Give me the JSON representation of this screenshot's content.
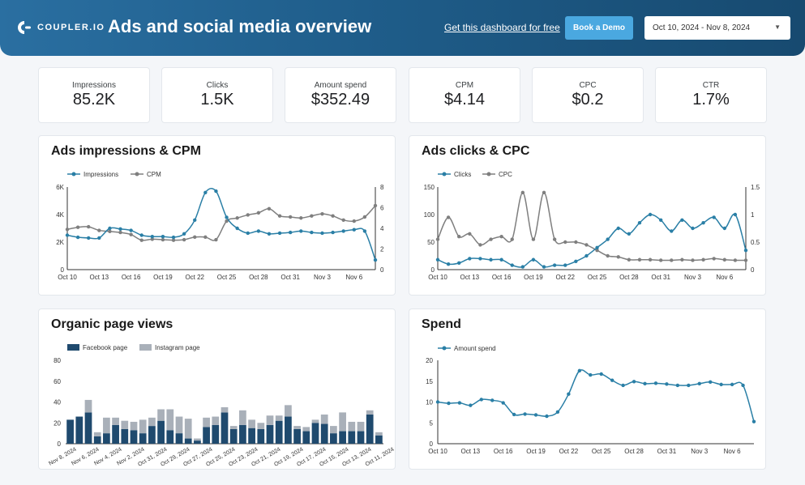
{
  "header": {
    "logo_text": "COUPLER.IO",
    "title": "Ads and social media overview",
    "free_link": "Get this dashboard for free",
    "demo_button": "Book a Demo",
    "date_range": "Oct 10, 2024 - Nov 8, 2024"
  },
  "kpis": [
    {
      "label": "Impressions",
      "value": "85.2K"
    },
    {
      "label": "Clicks",
      "value": "1.5K"
    },
    {
      "label": "Amount spend",
      "value": "$352.49"
    },
    {
      "label": "CPM",
      "value": "$4.14"
    },
    {
      "label": "CPC",
      "value": "$0.2"
    },
    {
      "label": "CTR",
      "value": "1.7%"
    }
  ],
  "colors": {
    "teal": "#2a7fa6",
    "gray": "#7f7f7f",
    "navy": "#1f4a6e",
    "lightgray": "#a9b0b9"
  },
  "chart_data": [
    {
      "type": "line",
      "title": "Ads impressions & CPM",
      "x_ticks": [
        "Oct 10",
        "Oct 13",
        "Oct 16",
        "Oct 19",
        "Oct 22",
        "Oct 25",
        "Oct 28",
        "Oct 31",
        "Nov 3",
        "Nov 6"
      ],
      "y_ticks_left": [
        "0",
        "2K",
        "4K",
        "6K"
      ],
      "y_ticks_right": [
        "0",
        "2",
        "4",
        "6",
        "8"
      ],
      "ylim_left": [
        0,
        6000
      ],
      "ylim_right": [
        0,
        8
      ],
      "series": [
        {
          "name": "Impressions",
          "axis": "left",
          "values": [
            2500,
            2350,
            2300,
            2300,
            3000,
            2950,
            2850,
            2500,
            2400,
            2400,
            2350,
            2600,
            3600,
            5600,
            5700,
            3800,
            3000,
            2650,
            2800,
            2600,
            2650,
            2700,
            2800,
            2700,
            2650,
            2700,
            2800,
            2900,
            2800,
            700
          ]
        },
        {
          "name": "CPM",
          "axis": "right",
          "values": [
            3.9,
            4.1,
            4.15,
            3.8,
            3.7,
            3.6,
            3.4,
            2.85,
            2.95,
            2.9,
            2.85,
            2.9,
            3.15,
            3.15,
            2.9,
            4.7,
            5.0,
            5.3,
            5.5,
            5.9,
            5.2,
            5.1,
            5.0,
            5.2,
            5.4,
            5.2,
            4.8,
            4.7,
            5.1,
            6.2
          ]
        }
      ]
    },
    {
      "type": "line",
      "title": "Ads clicks & CPC",
      "x_ticks": [
        "Oct 10",
        "Oct 13",
        "Oct 16",
        "Oct 19",
        "Oct 22",
        "Oct 25",
        "Oct 28",
        "Oct 31",
        "Nov 3",
        "Nov 6"
      ],
      "y_ticks_left": [
        "0",
        "50",
        "100",
        "150"
      ],
      "y_ticks_right": [
        "0",
        "0.5",
        "1",
        "1.5"
      ],
      "ylim_left": [
        0,
        150
      ],
      "ylim_right": [
        0,
        1.5
      ],
      "series": [
        {
          "name": "Clicks",
          "axis": "left",
          "values": [
            18,
            10,
            12,
            20,
            20,
            18,
            18,
            8,
            5,
            18,
            5,
            8,
            8,
            15,
            25,
            40,
            55,
            75,
            65,
            85,
            100,
            90,
            70,
            90,
            75,
            85,
            95,
            75,
            100,
            35
          ]
        },
        {
          "name": "CPC",
          "axis": "right",
          "values": [
            0.55,
            0.95,
            0.6,
            0.65,
            0.45,
            0.55,
            0.6,
            0.55,
            1.4,
            0.55,
            1.4,
            0.55,
            0.5,
            0.5,
            0.45,
            0.35,
            0.25,
            0.23,
            0.18,
            0.18,
            0.18,
            0.17,
            0.17,
            0.18,
            0.17,
            0.18,
            0.2,
            0.18,
            0.17,
            0.17
          ]
        }
      ]
    },
    {
      "type": "bar",
      "stacked": true,
      "title": "Organic page views",
      "x_tick_labels": [
        "Nov 8, 2024",
        "Nov 6, 2024",
        "Nov 4, 2024",
        "Nov 2, 2024",
        "Oct 31, 2024",
        "Oct 29, 2024",
        "Oct 27, 2024",
        "Oct 25, 2024",
        "Oct 23, 2024",
        "Oct 21, 2024",
        "Oct 19, 2024",
        "Oct 17, 2024",
        "Oct 15, 2024",
        "Oct 13, 2024",
        "Oct 11, 2024"
      ],
      "y_ticks": [
        "0",
        "20",
        "40",
        "60",
        "80"
      ],
      "ylim": [
        0,
        80
      ],
      "series": [
        {
          "name": "Facebook page",
          "values": [
            23,
            26,
            30,
            7,
            10,
            18,
            14,
            13,
            10,
            17,
            22,
            13,
            10,
            5,
            3,
            16,
            18,
            30,
            14,
            18,
            15,
            14,
            18,
            22,
            26,
            14,
            12,
            20,
            19,
            10,
            12,
            12,
            12,
            28,
            8
          ]
        },
        {
          "name": "Instagram page",
          "values": [
            0,
            0,
            12,
            4,
            15,
            7,
            8,
            8,
            13,
            8,
            11,
            20,
            16,
            19,
            2,
            9,
            8,
            5,
            3,
            14,
            8,
            6,
            9,
            5,
            11,
            3,
            4,
            3,
            9,
            7,
            18,
            9,
            9,
            4,
            3
          ]
        }
      ]
    },
    {
      "type": "line",
      "title": "Spend",
      "x_ticks": [
        "Oct 10",
        "Oct 13",
        "Oct 16",
        "Oct 19",
        "Oct 22",
        "Oct 25",
        "Oct 28",
        "Oct 31",
        "Nov 3",
        "Nov 6"
      ],
      "y_ticks": [
        "0",
        "5",
        "10",
        "15",
        "20"
      ],
      "ylim": [
        0,
        20
      ],
      "series": [
        {
          "name": "Amount spend",
          "values": [
            10,
            9.7,
            9.8,
            9.2,
            10.6,
            10.4,
            9.8,
            7,
            7.1,
            6.9,
            6.6,
            7.6,
            11.9,
            17.5,
            16.5,
            16.7,
            15.2,
            14,
            14.9,
            14.4,
            14.5,
            14.3,
            14,
            14,
            14.4,
            14.8,
            14.2,
            14.2,
            14,
            5.3
          ]
        }
      ]
    }
  ]
}
